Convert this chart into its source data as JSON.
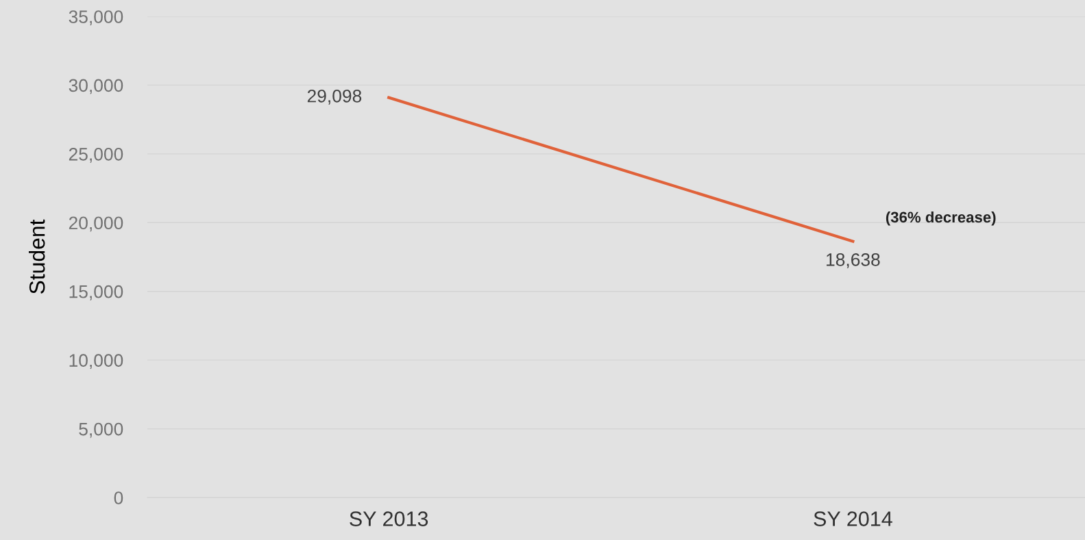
{
  "chart_data": {
    "type": "line",
    "ylabel": "Student",
    "categories": [
      "SY 2013",
      "SY 2014"
    ],
    "series": [
      {
        "color": "#e0623a",
        "values": [
          29098,
          18638
        ],
        "value_labels": [
          "29,098",
          "18,638"
        ]
      }
    ],
    "annotations": [
      "(36% decrease)"
    ],
    "ylim": [
      0,
      35000
    ],
    "yticks": [
      {
        "value": 0,
        "label": "0"
      },
      {
        "value": 5000,
        "label": "5,000"
      },
      {
        "value": 10000,
        "label": "10,000"
      },
      {
        "value": 15000,
        "label": "15,000"
      },
      {
        "value": 20000,
        "label": "20,000"
      },
      {
        "value": 25000,
        "label": "25,000"
      },
      {
        "value": 30000,
        "label": "30,000"
      },
      {
        "value": 35000,
        "label": "35,000"
      }
    ],
    "grid": "y",
    "marker": "none",
    "line_style": "solid"
  }
}
